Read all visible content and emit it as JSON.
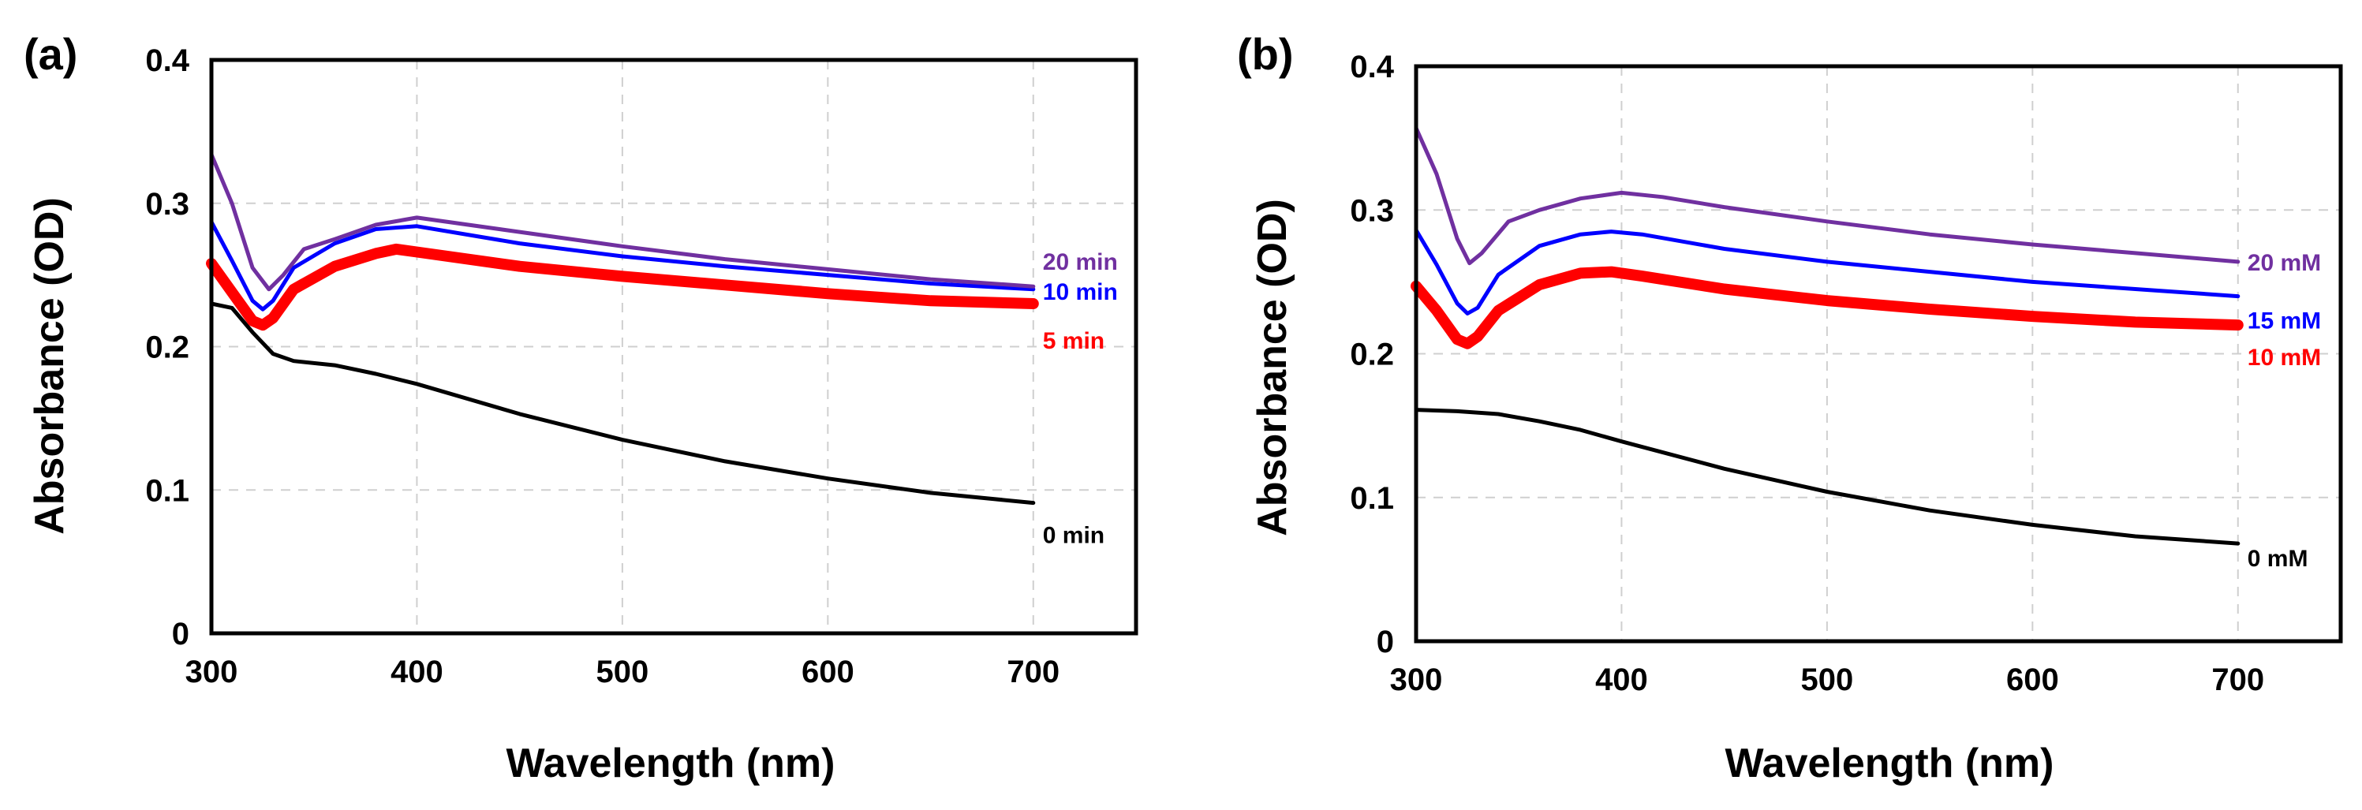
{
  "chart_data": [
    {
      "type": "line",
      "panel_label": "(a)",
      "xlabel": "Wavelength (nm)",
      "ylabel": "Absorbance (OD)",
      "xlim": [
        300,
        750
      ],
      "ylim": [
        0,
        0.4
      ],
      "x_ticks": [
        300,
        400,
        500,
        600,
        700
      ],
      "y_ticks": [
        0,
        0.1,
        0.2,
        0.3,
        0.4
      ],
      "y_tick_labels": [
        "0",
        "0.1",
        "0.2",
        "0.3",
        "0.4"
      ],
      "grid": true,
      "series": [
        {
          "name": "0 min",
          "color": "#000000",
          "style": "thin",
          "x": [
            300,
            310,
            320,
            330,
            340,
            360,
            380,
            400,
            450,
            500,
            550,
            600,
            650,
            700
          ],
          "y": [
            0.23,
            0.227,
            0.21,
            0.195,
            0.19,
            0.187,
            0.181,
            0.174,
            0.153,
            0.135,
            0.12,
            0.108,
            0.098,
            0.091
          ]
        },
        {
          "name": "5 min",
          "color": "#ff0000",
          "style": "thick",
          "x": [
            300,
            310,
            320,
            325,
            330,
            340,
            360,
            380,
            390,
            400,
            450,
            500,
            550,
            600,
            650,
            700
          ],
          "y": [
            0.258,
            0.238,
            0.218,
            0.215,
            0.22,
            0.24,
            0.256,
            0.265,
            0.268,
            0.266,
            0.256,
            0.249,
            0.243,
            0.237,
            0.232,
            0.23
          ]
        },
        {
          "name": "10 min",
          "color": "#0000ff",
          "style": "thin",
          "x": [
            300,
            310,
            320,
            325,
            330,
            340,
            360,
            380,
            400,
            450,
            500,
            550,
            600,
            650,
            700
          ],
          "y": [
            0.287,
            0.26,
            0.232,
            0.226,
            0.232,
            0.255,
            0.272,
            0.282,
            0.284,
            0.272,
            0.263,
            0.256,
            0.25,
            0.244,
            0.24
          ]
        },
        {
          "name": "20 min",
          "color": "#7030a0",
          "style": "thin",
          "x": [
            300,
            310,
            320,
            328,
            335,
            345,
            360,
            380,
            400,
            450,
            500,
            550,
            600,
            650,
            700
          ],
          "y": [
            0.334,
            0.3,
            0.255,
            0.24,
            0.25,
            0.268,
            0.275,
            0.285,
            0.29,
            0.28,
            0.27,
            0.261,
            0.254,
            0.247,
            0.242
          ]
        }
      ]
    },
    {
      "type": "line",
      "panel_label": "(b)",
      "xlabel": "Wavelength (nm)",
      "ylabel": "Absorbance (OD)",
      "xlim": [
        300,
        750
      ],
      "ylim": [
        0,
        0.4
      ],
      "x_ticks": [
        300,
        400,
        500,
        600,
        700
      ],
      "y_ticks": [
        0,
        0.1,
        0.2,
        0.3,
        0.4
      ],
      "y_tick_labels": [
        "0",
        "0.1",
        "0.2",
        "0.3",
        "0.4"
      ],
      "grid": true,
      "series": [
        {
          "name": "0 mM",
          "color": "#000000",
          "style": "thin",
          "x": [
            300,
            320,
            340,
            360,
            380,
            400,
            450,
            500,
            550,
            600,
            650,
            700
          ],
          "y": [
            0.161,
            0.16,
            0.158,
            0.153,
            0.147,
            0.139,
            0.12,
            0.104,
            0.091,
            0.081,
            0.073,
            0.068
          ]
        },
        {
          "name": "10 mM",
          "color": "#ff0000",
          "style": "thick",
          "x": [
            300,
            310,
            320,
            325,
            330,
            340,
            360,
            380,
            395,
            410,
            450,
            500,
            550,
            600,
            650,
            700
          ],
          "y": [
            0.247,
            0.23,
            0.21,
            0.207,
            0.212,
            0.23,
            0.248,
            0.256,
            0.257,
            0.254,
            0.245,
            0.237,
            0.231,
            0.226,
            0.222,
            0.22
          ]
        },
        {
          "name": "15 mM",
          "color": "#0000ff",
          "style": "thin",
          "x": [
            300,
            310,
            320,
            325,
            330,
            340,
            360,
            380,
            395,
            410,
            450,
            500,
            550,
            600,
            650,
            700
          ],
          "y": [
            0.286,
            0.262,
            0.235,
            0.228,
            0.232,
            0.255,
            0.275,
            0.283,
            0.285,
            0.283,
            0.273,
            0.264,
            0.257,
            0.25,
            0.245,
            0.24
          ]
        },
        {
          "name": "20 mM",
          "color": "#7030a0",
          "style": "thin",
          "x": [
            300,
            310,
            320,
            326,
            332,
            345,
            360,
            380,
            400,
            420,
            450,
            500,
            550,
            600,
            650,
            700
          ],
          "y": [
            0.357,
            0.325,
            0.28,
            0.263,
            0.27,
            0.292,
            0.3,
            0.308,
            0.312,
            0.309,
            0.302,
            0.292,
            0.283,
            0.276,
            0.27,
            0.264
          ]
        }
      ]
    }
  ]
}
